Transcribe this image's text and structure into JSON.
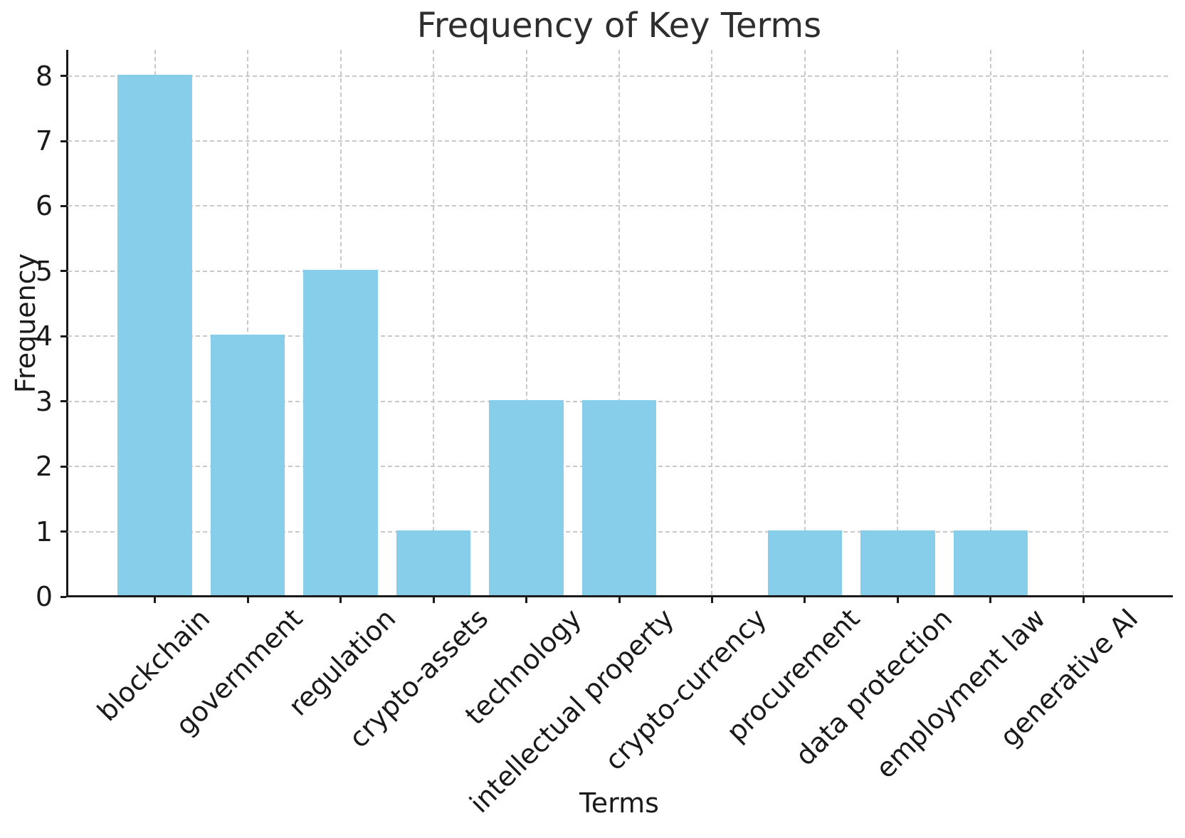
{
  "chart_data": {
    "type": "bar",
    "title": "Frequency of Key Terms",
    "xlabel": "Terms",
    "ylabel": "Frequency",
    "categories": [
      "blockchain",
      "government",
      "regulation",
      "crypto-assets",
      "technology",
      "intellectual property",
      "crypto-currency",
      "procurement",
      "data protection",
      "employment law",
      "generative AI"
    ],
    "values": [
      8,
      4,
      5,
      1,
      3,
      3,
      0,
      1,
      1,
      1,
      0
    ],
    "yticks": [
      0,
      1,
      2,
      3,
      4,
      5,
      6,
      7,
      8
    ],
    "ylim": [
      0,
      8.4
    ],
    "grid": "both-dashed",
    "legend_position": "none",
    "bar_color": "#87CEEB"
  },
  "colors": {
    "bar": "#87CEEB",
    "grid": "#c9c9c9",
    "axis": "#1a1a1a",
    "text": "#1a1a1a",
    "title_text": "#2e2e2e",
    "background": "#ffffff"
  }
}
